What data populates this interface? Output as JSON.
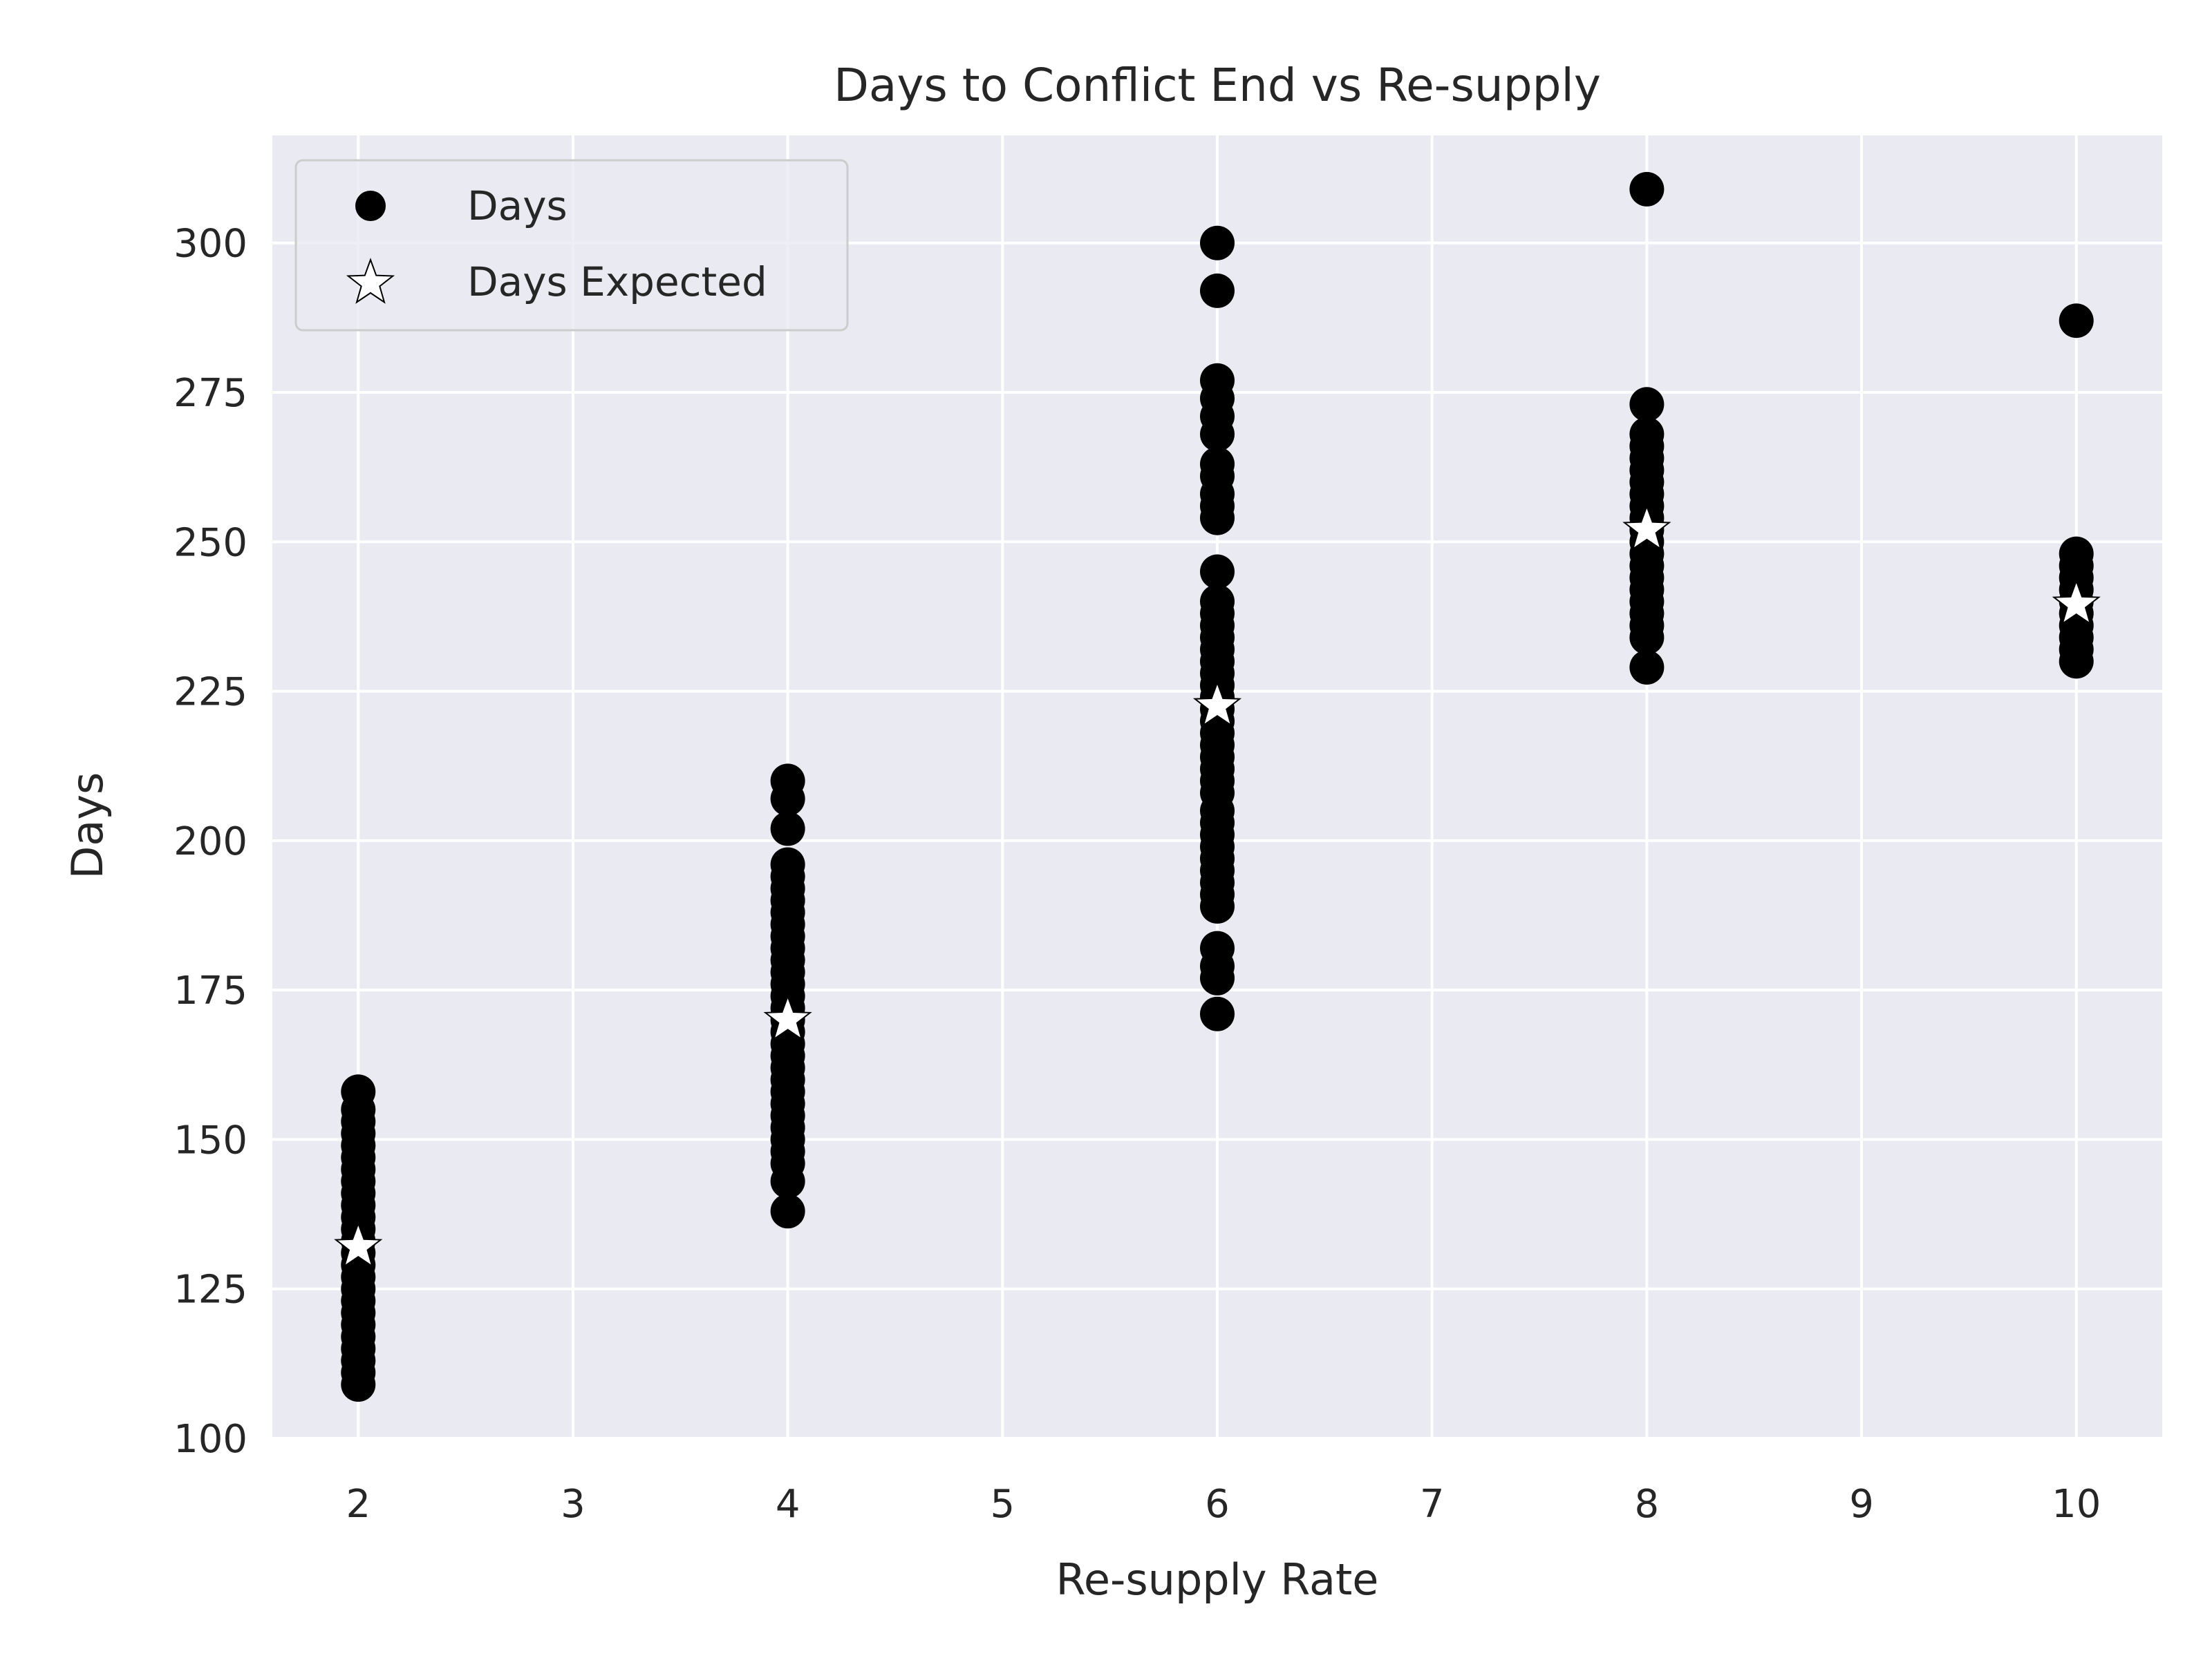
{
  "chart_data": {
    "type": "scatter",
    "title": "Days to Conflict End vs Re-supply",
    "xlabel": "Re-supply Rate",
    "ylabel": "Days",
    "xlim": [
      1.6,
      10.4
    ],
    "ylim": [
      100,
      318
    ],
    "xticks": [
      2,
      3,
      4,
      5,
      6,
      7,
      8,
      9,
      10
    ],
    "yticks": [
      100,
      125,
      150,
      175,
      200,
      225,
      250,
      275,
      300
    ],
    "grid": true,
    "legend_position": "top-left",
    "colors": {
      "plot_background": "#eaeaf2",
      "grid": "#ffffff",
      "points": "#000000",
      "expected_fill": "#ffffff",
      "expected_edge": "#000000"
    },
    "series": [
      {
        "name": "Days",
        "marker": "circle",
        "points": [
          {
            "x": 2,
            "ys": [
              109,
              111,
              113,
              115,
              117,
              119,
              121,
              123,
              125,
              127,
              129,
              131,
              133,
              135,
              137,
              139,
              141,
              143,
              145,
              147,
              149,
              151,
              153,
              155,
              158
            ]
          },
          {
            "x": 4,
            "ys": [
              138,
              143,
              146,
              148,
              150,
              152,
              154,
              156,
              158,
              160,
              162,
              164,
              166,
              168,
              170,
              172,
              174,
              176,
              178,
              180,
              182,
              184,
              186,
              188,
              190,
              192,
              194,
              196,
              202,
              207,
              210
            ]
          },
          {
            "x": 6,
            "ys": [
              171,
              177,
              179,
              182,
              189,
              191,
              193,
              195,
              197,
              199,
              201,
              203,
              205,
              208,
              210,
              212,
              214,
              216,
              218,
              220,
              222,
              224,
              226,
              228,
              230,
              232,
              234,
              236,
              238,
              240,
              245,
              254,
              256,
              258,
              261,
              263,
              268,
              271,
              274,
              277,
              292,
              300
            ]
          },
          {
            "x": 8,
            "ys": [
              229,
              234,
              236,
              238,
              240,
              242,
              244,
              246,
              248,
              250,
              252,
              254,
              256,
              258,
              260,
              262,
              264,
              266,
              268,
              273,
              309
            ]
          },
          {
            "x": 10,
            "ys": [
              230,
              232,
              234,
              236,
              238,
              240,
              242,
              244,
              246,
              248,
              287
            ]
          }
        ]
      },
      {
        "name": "Days Expected",
        "marker": "star",
        "points": [
          {
            "x": 2,
            "y": 132
          },
          {
            "x": 4,
            "y": 170
          },
          {
            "x": 6,
            "y": 222.5
          },
          {
            "x": 8,
            "y": 252
          },
          {
            "x": 10,
            "y": 239.5
          }
        ]
      }
    ]
  }
}
